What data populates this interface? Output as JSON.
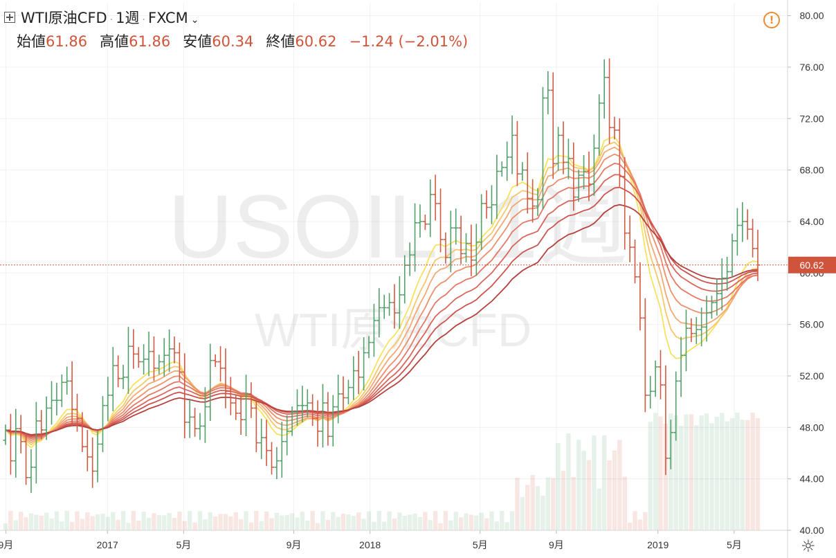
{
  "header": {
    "title": "WTI原油CFD",
    "interval": "1週",
    "source": "FXCM"
  },
  "ohlc": {
    "open_label": "始値",
    "open": "61.86",
    "high_label": "高値",
    "high": "61.86",
    "low_label": "安値",
    "low": "60.34",
    "close_label": "終値",
    "close": "60.62",
    "change": "−1.24 (−2.01%)"
  },
  "watermark": {
    "symbol": "USOIL, 1週",
    "name": "WTI原油CFD"
  },
  "icons": {
    "warning": "warning-icon",
    "settings": "gear-icon",
    "add": "plus-box-icon"
  },
  "colors": {
    "up": "#53a06a",
    "down": "#d05a43",
    "last_price": "#d0543b",
    "ribbon": [
      "#f7e25e",
      "#f6c66b",
      "#f2a873",
      "#ec8f6c",
      "#e37866",
      "#d9655b",
      "#cc5450",
      "#b5413d"
    ]
  },
  "chart_data": {
    "type": "ohlc",
    "ylim": [
      40,
      81
    ],
    "ytick_labels": [
      "80.00",
      "76.00",
      "72.00",
      "68.00",
      "64.00",
      "60.00",
      "56.00",
      "52.00",
      "48.00",
      "44.00",
      "40.00"
    ],
    "last_price_label": "60.62",
    "xtick_labels": [
      "9月",
      "2017",
      "5月",
      "9月",
      "2018",
      "5月",
      "9月",
      "2019",
      "5月"
    ],
    "weeks": 142,
    "close": [
      47.8,
      45.4,
      47.9,
      46.9,
      44.1,
      44.9,
      48.5,
      47.8,
      49.5,
      50.1,
      50.1,
      51.5,
      51.6,
      49.4,
      48.7,
      46.5,
      45.7,
      44.6,
      46.7,
      49.7,
      50.5,
      52.8,
      51.8,
      51.9,
      54.3,
      53.7,
      53.1,
      53.3,
      53.9,
      52.6,
      53.1,
      53.6,
      54.1,
      53.8,
      52.3,
      48.4,
      48.8,
      47.9,
      48.1,
      49.6,
      53.2,
      53.1,
      52.6,
      50.8,
      49.9,
      49.1,
      48.6,
      50.6,
      49.5,
      46.8,
      47.2,
      46.2,
      44.9,
      45.4,
      46.9,
      47.7,
      49.2,
      49.7,
      49.7,
      49.9,
      48.7,
      47.7,
      49.9,
      47.3,
      49.6,
      50.6,
      50.3,
      51.1,
      52.4,
      51.9,
      53.8,
      54.6,
      56.3,
      57.3,
      57.3,
      57.7,
      56.9,
      58.3,
      60.6,
      61.4,
      63.9,
      64.0,
      63.8,
      66.1,
      65.4,
      62.6,
      61.2,
      63.5,
      63.5,
      61.5,
      62.3,
      61.0,
      62.4,
      65.4,
      65.1,
      65.3,
      67.9,
      68.2,
      69.0,
      70.7,
      67.7,
      68.0,
      65.8,
      65.2,
      65.7,
      73.6,
      74.2,
      68.5,
      70.7,
      68.6,
      68.9,
      65.9,
      67.6,
      67.9,
      66.9,
      69.7,
      73.2,
      75.2,
      71.3,
      71.1,
      67.5,
      63.1,
      62.0,
      59.7,
      56.5,
      50.5,
      50.8,
      52.7,
      51.3,
      45.6,
      47.6,
      51.6,
      53.6,
      55.7,
      55.3,
      55.6,
      55.8,
      56.9,
      57.7,
      58.4,
      59.6,
      60.1,
      62.5,
      63.7,
      64.0,
      63.4,
      61.9,
      60.62
    ],
    "ribbon_periods": [
      10,
      13,
      16,
      20,
      25,
      31,
      38,
      48
    ]
  }
}
